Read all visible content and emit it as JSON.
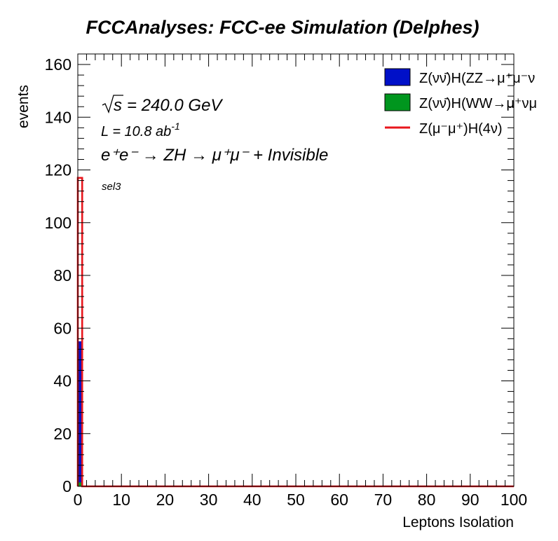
{
  "chart_data": {
    "type": "bar",
    "title": "FCCAnalyses: FCC-ee Simulation (Delphes)",
    "xlabel": "Leptons Isolation",
    "ylabel": "events",
    "xlim": [
      0,
      100
    ],
    "ylim": [
      0,
      164
    ],
    "x_ticks": [
      "0",
      "10",
      "20",
      "30",
      "40",
      "50",
      "60",
      "70",
      "80",
      "90",
      "100"
    ],
    "y_ticks": [
      "0",
      "20",
      "40",
      "60",
      "80",
      "100",
      "120",
      "140",
      "160"
    ],
    "bin_edges": [
      0,
      1
    ],
    "grid": false,
    "legend_position": "top-right",
    "series": [
      {
        "name": "Z(νν̄)H(ZZ→μ⁺μ⁻ν",
        "style": "filled",
        "color": "#0010c8",
        "values": [
          55
        ]
      },
      {
        "name": "Z(νν̄)H(WW→μ⁺νμ",
        "style": "filled",
        "color": "#00961e",
        "values": [
          1.5
        ]
      },
      {
        "name": "Z(μ⁻μ⁺)H(4ν)",
        "style": "line",
        "color": "#e8161c",
        "values": [
          117
        ]
      }
    ],
    "annotations": {
      "sqrt_s": "240.0 GeV",
      "lumi": "L = 10.8 ab",
      "lumi_exp": "-1",
      "process": "e⁺e⁻ → ZH → μ⁺μ⁻ + Invisible",
      "selection": "sel3"
    }
  }
}
